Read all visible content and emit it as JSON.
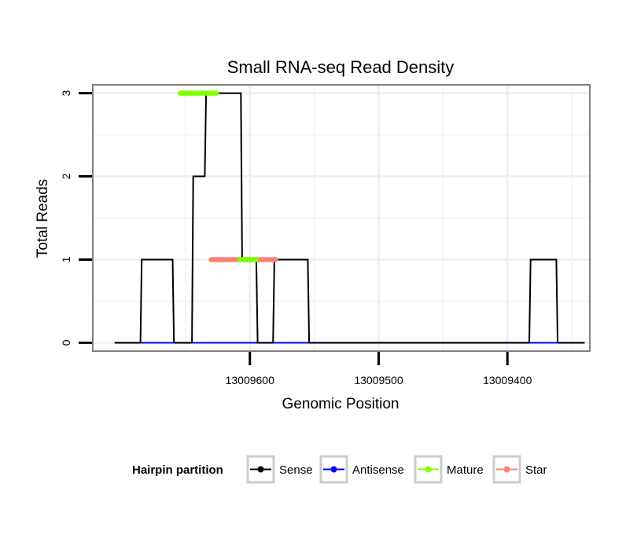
{
  "chart_data": {
    "type": "line",
    "title": "Small RNA-seq Read Density",
    "xlabel": "Genomic Position",
    "ylabel": "Total Reads",
    "x_reversed": true,
    "xlim": [
      13009336,
      13009722
    ],
    "ylim": [
      -0.1,
      3.1
    ],
    "x_ticks": [
      13009600,
      13009500,
      13009400
    ],
    "x_tick_labels": [
      "13009600",
      "13009500",
      "13009400"
    ],
    "y_ticks": [
      0,
      1,
      2,
      3
    ],
    "y_tick_labels": [
      "0",
      "1",
      "2",
      "3"
    ],
    "grid": true,
    "legend": {
      "title": "Hairpin partition",
      "position": "bottom",
      "entries": [
        {
          "name": "Sense",
          "color": "#000000"
        },
        {
          "name": "Antisense",
          "color": "#0000ff"
        },
        {
          "name": "Mature",
          "color": "#7fff00"
        },
        {
          "name": "Star",
          "color": "#fa8072"
        }
      ]
    },
    "series": [
      {
        "name": "Sense",
        "color": "#000000",
        "x": [
          13009705,
          13009685,
          13009684,
          13009660,
          13009659,
          13009645,
          13009644,
          13009635,
          13009634,
          13009607,
          13009606,
          13009595,
          13009594,
          13009582,
          13009581,
          13009555,
          13009554,
          13009525,
          13009524,
          13009383,
          13009382,
          13009362,
          13009361,
          13009340
        ],
        "y": [
          0,
          0,
          1,
          1,
          0,
          0,
          2,
          2,
          3,
          3,
          1,
          1,
          0,
          0,
          1,
          1,
          0,
          0,
          0,
          0,
          1,
          1,
          0,
          0
        ]
      },
      {
        "name": "Antisense",
        "color": "#0000ff",
        "x": [
          13009705,
          13009340
        ],
        "y": [
          0,
          0
        ]
      },
      {
        "name": "Mature",
        "color": "#7fff00",
        "x": [
          13009626,
          13009627,
          13009628,
          13009629,
          13009630,
          13009631,
          13009632,
          13009633,
          13009634,
          13009635,
          13009636,
          13009637,
          13009638,
          13009639,
          13009640,
          13009641,
          13009642,
          13009643,
          13009644,
          13009645,
          13009646,
          13009647,
          13009648,
          13009649,
          13009650,
          13009651,
          13009652,
          13009653,
          13009654,
          13009595,
          13009596,
          13009597,
          13009598,
          13009599,
          13009600,
          13009601,
          13009602,
          13009603,
          13009604,
          13009605,
          13009606,
          13009607,
          13009608
        ],
        "y": [
          3,
          3,
          3,
          3,
          3,
          3,
          3,
          3,
          3,
          3,
          3,
          3,
          3,
          3,
          3,
          3,
          3,
          3,
          3,
          3,
          3,
          3,
          3,
          3,
          3,
          3,
          3,
          3,
          3,
          1,
          1,
          1,
          1,
          1,
          1,
          1,
          1,
          1,
          1,
          1,
          1,
          1,
          1
        ]
      },
      {
        "name": "Star",
        "color": "#fa8072",
        "x": [
          13009580,
          13009581,
          13009582,
          13009583,
          13009584,
          13009585,
          13009586,
          13009587,
          13009588,
          13009589,
          13009590,
          13009591,
          13009592,
          13009593,
          13009594,
          13009595,
          13009596,
          13009597,
          13009598,
          13009599,
          13009600,
          13009601,
          13009602,
          13009603,
          13009604,
          13009605,
          13009606,
          13009607,
          13009608,
          13009609,
          13009610,
          13009611,
          13009612,
          13009613,
          13009614,
          13009615,
          13009616,
          13009617,
          13009618,
          13009619,
          13009620,
          13009621,
          13009622,
          13009623,
          13009624,
          13009625,
          13009626,
          13009627,
          13009628,
          13009629,
          13009630
        ],
        "y": [
          1,
          1,
          1,
          1,
          1,
          1,
          1,
          1,
          1,
          1,
          1,
          1,
          1,
          1,
          1,
          1,
          1,
          1,
          1,
          1,
          1,
          1,
          1,
          1,
          1,
          1,
          1,
          1,
          1,
          1,
          1,
          1,
          1,
          1,
          1,
          1,
          1,
          1,
          1,
          1,
          1,
          1,
          1,
          1,
          1,
          1,
          1,
          1,
          1,
          1,
          1
        ]
      }
    ]
  }
}
